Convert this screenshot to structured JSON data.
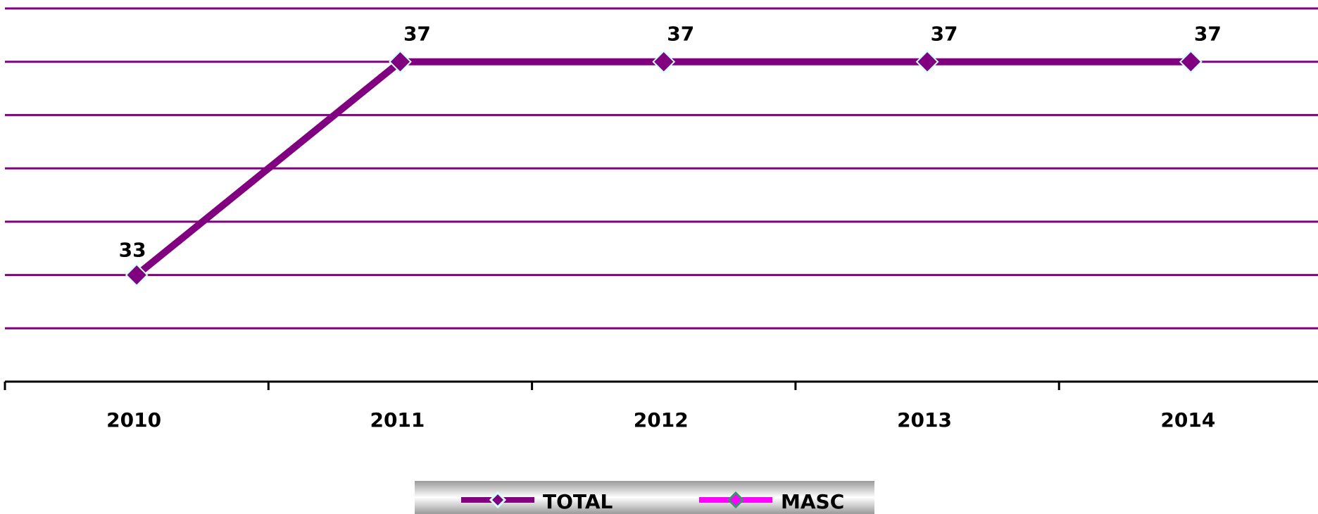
{
  "chart_data": {
    "type": "line",
    "categories": [
      "2010",
      "2011",
      "2012",
      "2013",
      "2014"
    ],
    "series": [
      {
        "name": "TOTAL",
        "color": "#800080",
        "values": [
          33,
          37,
          37,
          37,
          37
        ]
      },
      {
        "name": "MASC",
        "color": "#ff00ff",
        "values": [
          null,
          null,
          null,
          null,
          null
        ]
      }
    ],
    "ylim": [
      31,
      38
    ],
    "yticks": [
      31,
      32,
      33,
      34,
      35,
      36,
      37,
      38
    ],
    "grid": true,
    "legend": "bottom"
  }
}
